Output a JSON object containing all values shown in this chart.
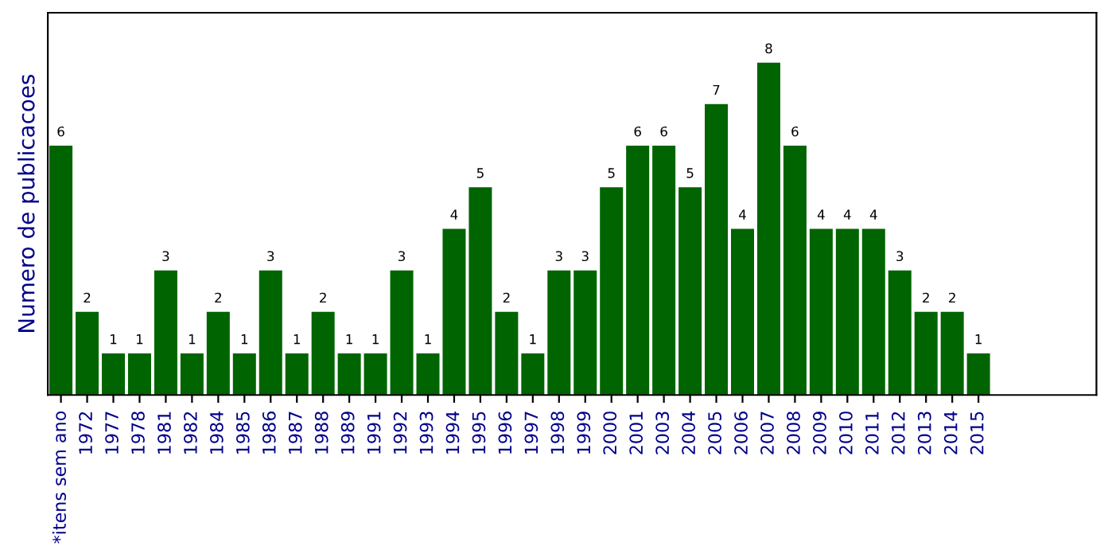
{
  "chart_data": {
    "type": "bar",
    "ylabel": "Numero de publicacoes",
    "categories": [
      "*itens sem ano",
      "1972",
      "1977",
      "1978",
      "1981",
      "1982",
      "1984",
      "1985",
      "1986",
      "1987",
      "1988",
      "1989",
      "1991",
      "1992",
      "1993",
      "1994",
      "1995",
      "1996",
      "1997",
      "1998",
      "1999",
      "2000",
      "2001",
      "2003",
      "2004",
      "2005",
      "2006",
      "2007",
      "2008",
      "2009",
      "2010",
      "2011",
      "2012",
      "2013",
      "2014",
      "2015"
    ],
    "values": [
      6,
      2,
      1,
      1,
      3,
      1,
      2,
      1,
      3,
      1,
      2,
      1,
      1,
      3,
      1,
      4,
      5,
      2,
      1,
      3,
      3,
      5,
      6,
      6,
      5,
      7,
      4,
      8,
      6,
      4,
      4,
      4,
      3,
      2,
      2,
      1
    ],
    "color": "#006400",
    "ylim": [
      0,
      9.2
    ],
    "data_labels": true,
    "grid": false,
    "legend": false,
    "tick_labels": "x"
  }
}
